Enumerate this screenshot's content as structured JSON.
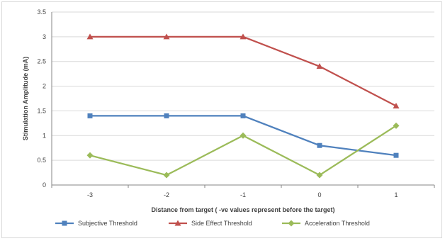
{
  "chart_data": {
    "type": "line",
    "title": "",
    "xlabel": "Distance from target ( -ve values represent before the target)",
    "ylabel": "Stimulation Amplitude (mA)",
    "categories": [
      "-3",
      "-2",
      "-1",
      "0",
      "1"
    ],
    "ylim": [
      0,
      3.5
    ],
    "yticks": [
      "0",
      "0.5",
      "1",
      "1.5",
      "2",
      "2.5",
      "3",
      "3.5"
    ],
    "grid": "horizontal",
    "legend_position": "bottom",
    "series": [
      {
        "name": "Subjective Threshold",
        "color": "#4f81bd",
        "marker": "square",
        "values": [
          1.4,
          1.4,
          1.4,
          0.8,
          0.6
        ]
      },
      {
        "name": "Side Effect Threshold",
        "color": "#c0504d",
        "marker": "triangle",
        "values": [
          3.0,
          3.0,
          3.0,
          2.4,
          1.6
        ]
      },
      {
        "name": "Acceleration Threshold",
        "color": "#9bbb59",
        "marker": "diamond",
        "values": [
          0.6,
          0.2,
          1.0,
          0.2,
          1.2
        ]
      }
    ]
  }
}
